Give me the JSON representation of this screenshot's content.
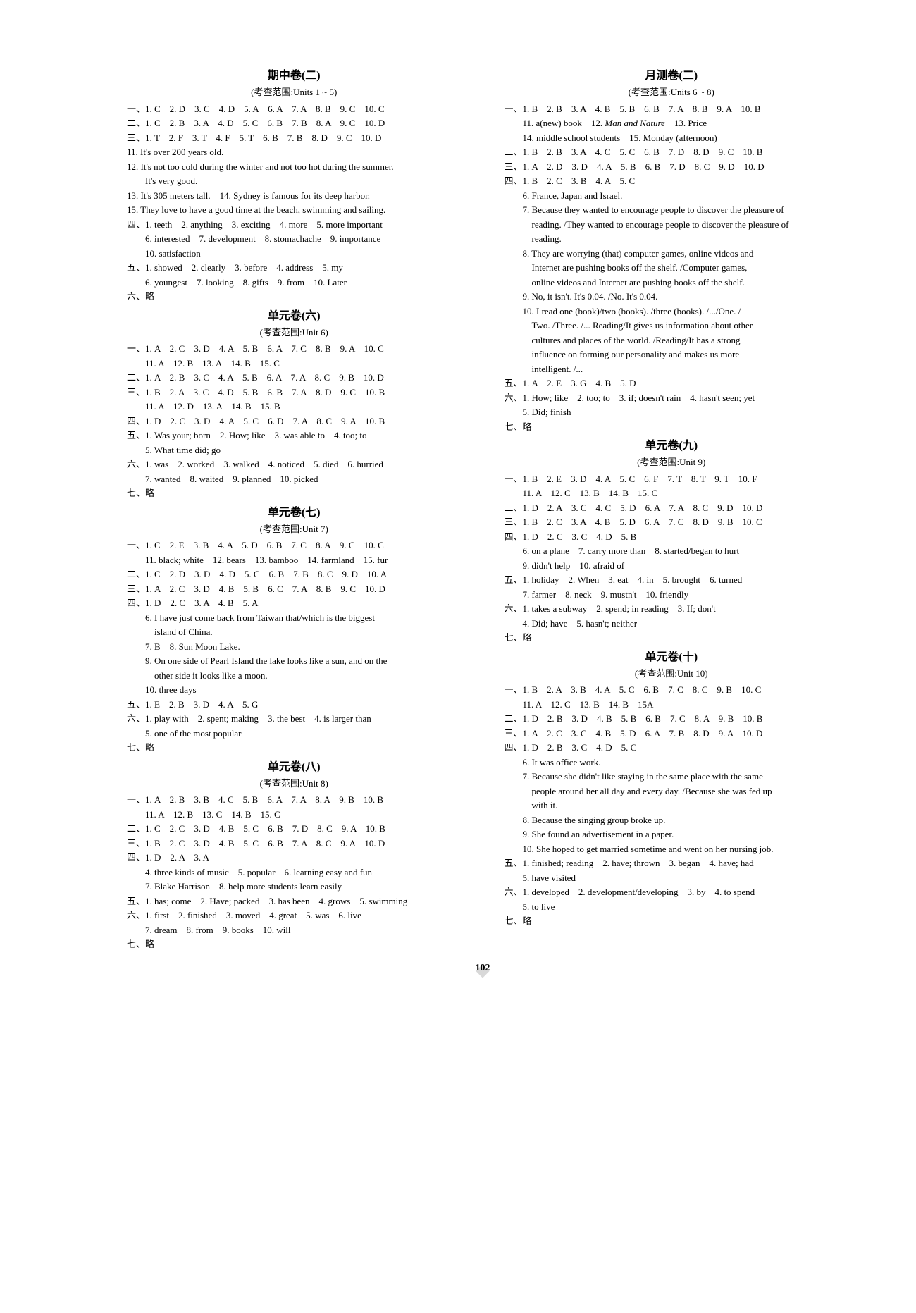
{
  "pageNumber": "102",
  "left": {
    "sections": [
      {
        "title": "期中卷(二)",
        "sub": "(考查范围:Units 1 ~ 5)",
        "blocks": [
          {
            "lines": [
              "一、1. C　2. D　3. C　4. D　5. A　6. A　7. A　8. B　9. C　10. C",
              "二、1. C　2. B　3. A　4. D　5. C　6. B　7. B　8. A　9. C　10. D",
              "三、1. T　2. F　3. T　4. F　5. T　6. B　7. B　8. D　9. C　10. D",
              "11. It's over 200 years old.",
              "12. It's not too cold during the winter and not too hot during the summer.",
              "　　It's very good.",
              "13. It's 305 meters tall.　14. Sydney is famous for its deep harbor.",
              "15. They love to have a good time at the beach, swimming and sailing.",
              "四、1. teeth　2. anything　3. exciting　4. more　5. more important",
              "　　6. interested　7. development　8. stomachache　9. importance",
              "　　10. satisfaction",
              "五、1. showed　2. clearly　3. before　4. address　5. my",
              "　　6. youngest　7. looking　8. gifts　9. from　10. Later",
              "六、略"
            ]
          }
        ]
      },
      {
        "title": "单元卷(六)",
        "sub": "(考查范围:Unit 6)",
        "blocks": [
          {
            "lines": [
              "一、1. A　2. C　3. D　4. A　5. B　6. A　7. C　8. B　9. A　10. C",
              "　　11. A　12. B　13. A　14. B　15. C",
              "二、1. A　2. B　3. C　4. A　5. B　6. A　7. A　8. C　9. B　10. D",
              "三、1. B　2. A　3. C　4. D　5. B　6. B　7. A　8. D　9. C　10. B",
              "　　11. A　12. D　13. A　14. B　15. B",
              "四、1. D　2. C　3. D　4. A　5. C　6. D　7. A　8. C　9. A　10. B",
              "五、1. Was your; born　2. How; like　3. was able to　4. too; to",
              "　　5. What time did; go",
              "六、1. was　2. worked　3. walked　4. noticed　5. died　6. hurried",
              "　　7. wanted　8. waited　9. planned　10. picked",
              "七、略"
            ]
          }
        ]
      },
      {
        "title": "单元卷(七)",
        "sub": "(考查范围:Unit 7)",
        "blocks": [
          {
            "lines": [
              "一、1. C　2. E　3. B　4. A　5. D　6. B　7. C　8. A　9. C　10. C",
              "　　11. black; white　12. bears　13. bamboo　14. farmland　15. fur",
              "二、1. C　2. D　3. D　4. D　5. C　6. B　7. B　8. C　9. D　10. A",
              "三、1. A　2. C　3. D　4. B　5. B　6. C　7. A　8. B　9. C　10. D",
              "四、1. D　2. C　3. A　4. B　5. A",
              "　　6. I have just come back from Taiwan that/which is the biggest",
              "　　　island of China.",
              "　　7. B　8. Sun Moon Lake.",
              "　　9. On one side of Pearl Island the lake looks like a sun, and on the",
              "　　　other side it looks like a moon.",
              "　　10. three days",
              "五、1. E　2. B　3. D　4. A　5. G",
              "六、1. play with　2. spent; making　3. the best　4. is larger than",
              "　　5. one of the most popular",
              "七、略"
            ]
          }
        ]
      },
      {
        "title": "单元卷(八)",
        "sub": "(考查范围:Unit 8)",
        "blocks": [
          {
            "lines": [
              "一、1. A　2. B　3. B　4. C　5. B　6. A　7. A　8. A　9. B　10. B",
              "　　11. A　12. B　13. C　14. B　15. C",
              "二、1. C　2. C　3. D　4. B　5. C　6. B　7. D　8. C　9. A　10. B",
              "三、1. B　2. C　3. D　4. B　5. C　6. B　7. A　8. C　9. A　10. D",
              "四、1. D　2. A　3. A",
              "　　4. three kinds of music　5. popular　6. learning easy and fun",
              "　　7. Blake Harrison　8. help more students learn easily",
              "五、1. has; come　2. Have; packed　3. has been　4. grows　5. swimming",
              "六、1. first　2. finished　3. moved　4. great　5. was　6. live",
              "　　7. dream　8. from　9. books　10. will",
              "七、略"
            ]
          }
        ]
      }
    ]
  },
  "right": {
    "sections": [
      {
        "title": "月测卷(二)",
        "sub": "(考查范围:Units 6 ~ 8)",
        "blocks": [
          {
            "lines": [
              "一、1. B　2. B　3. A　4. B　5. B　6. B　7. A　8. B　9. A　10. B",
              "　　11. a(new) book　12. <em>Man and Nature</em>　13. Price",
              "　　14. middle school students　15. Monday (afternoon)",
              "二、1. B　2. B　3. A　4. C　5. C　6. B　7. D　8. D　9. C　10. B",
              "三、1. A　2. D　3. D　4. A　5. B　6. B　7. D　8. C　9. D　10. D",
              "四、1. B　2. C　3. B　4. A　5. C",
              "　　6. France, Japan and Israel.",
              "　　7. Because they wanted to encourage people to discover the pleasure of",
              "　　　reading. /They wanted to encourage people to discover the pleasure of",
              "　　　reading.",
              "　　8. They are worrying (that) computer games, online videos and",
              "　　　Internet are pushing books off the shelf. /Computer games,",
              "　　　online videos and Internet are pushing books off the shelf.",
              "　　9. No, it isn't. It's 0.04. /No. It's 0.04.",
              "　　10. I read one (book)/two (books). /three (books). /.../One. /",
              "　　　Two. /Three. /... Reading/It gives us information about other",
              "　　　cultures and places of the world. /Reading/It has a strong",
              "　　　influence on forming our personality and makes us more",
              "　　　intelligent. /...",
              "五、1. A　2. E　3. G　4. B　5. D",
              "六、1. How; like　2. too; to　3. if; doesn't rain　4. hasn't seen; yet",
              "　　5. Did; finish",
              "七、略"
            ]
          }
        ]
      },
      {
        "title": "单元卷(九)",
        "sub": "(考查范围:Unit 9)",
        "blocks": [
          {
            "lines": [
              "一、1. B　2. E　3. D　4. A　5. C　6. F　7. T　8. T　9. T　10. F",
              "　　11. A　12. C　13. B　14. B　15. C",
              "二、1. D　2. A　3. C　4. C　5. D　6. A　7. A　8. C　9. D　10. D",
              "三、1. B　2. C　3. A　4. B　5. D　6. A　7. C　8. D　9. B　10. C",
              "四、1. D　2. C　3. C　4. D　5. B",
              "　　6. on a plane　7. carry more than　8. started/began to hurt",
              "　　9. didn't help　10. afraid of",
              "五、1. holiday　2. When　3. eat　4. in　5. brought　6. turned",
              "　　7. farmer　8. neck　9. mustn't　10. friendly",
              "六、1. takes a subway　2. spend; in reading　3. If; don't",
              "　　4. Did; have　5. hasn't; neither",
              "七、略"
            ]
          }
        ]
      },
      {
        "title": "单元卷(十)",
        "sub": "(考查范围:Unit 10)",
        "blocks": [
          {
            "lines": [
              "一、1. B　2. A　3. B　4. A　5. C　6. B　7. C　8. C　9. B　10. C",
              "　　11. A　12. C　13. B　14. B　15A",
              "二、1. D　2. B　3. D　4. B　5. B　6. B　7. C　8. A　9. B　10. B",
              "三、1. A　2. C　3. C　4. B　5. D　6. A　7. B　8. D　9. A　10. D",
              "四、1. D　2. B　3. C　4. D　5. C",
              "　　6. It was office work.",
              "　　7. Because she didn't like staying in the same place with the same",
              "　　　people around her all day and every day. /Because she was fed up",
              "　　　with it.",
              "　　8. Because the singing group broke up.",
              "　　9. She found an advertisement in a paper.",
              "　　10. She hoped to get married sometime and went on her nursing job.",
              "五、1. finished; reading　2. have; thrown　3. began　4. have; had",
              "　　5. have visited",
              "六、1. developed　2. development/developing　3. by　4. to spend",
              "　　5. to live",
              "七、略"
            ]
          }
        ]
      }
    ]
  }
}
